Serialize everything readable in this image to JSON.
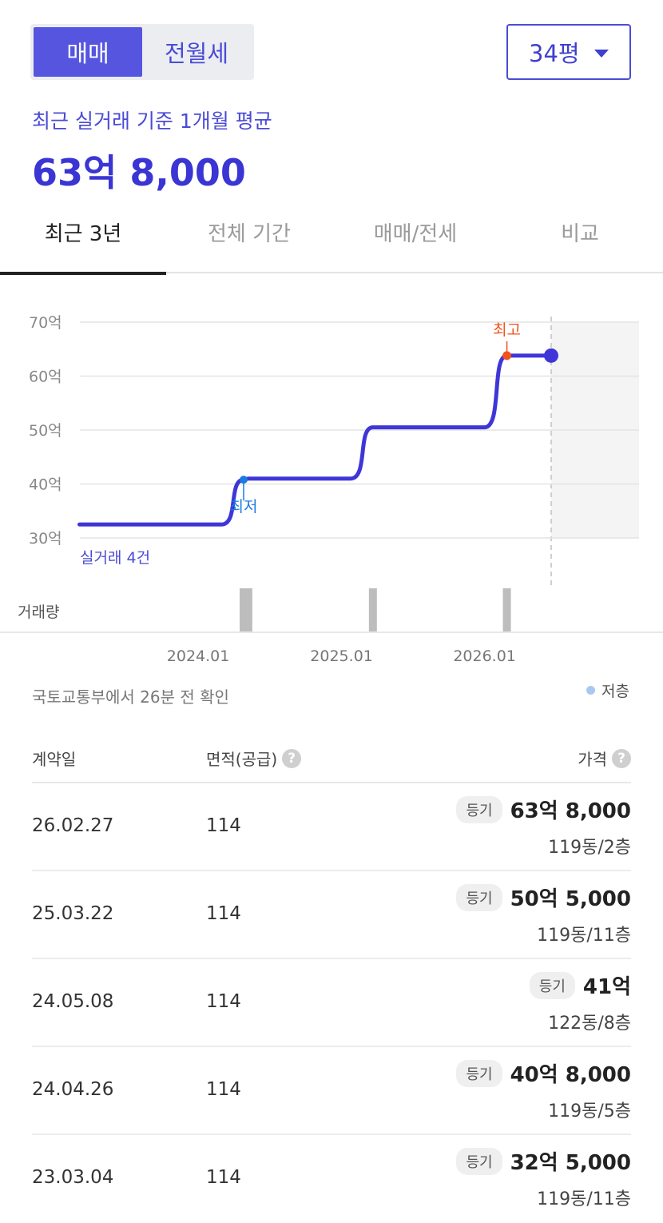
{
  "segment": {
    "options": [
      "매매",
      "전월세"
    ],
    "selected": 0
  },
  "size_select": {
    "value": "34평"
  },
  "summary": {
    "label": "최근 실거래 기준 1개월 평균",
    "price": "63억 8,000"
  },
  "tabs": [
    {
      "label": "최근 3년",
      "active": true
    },
    {
      "label": "전체 기간",
      "active": false
    },
    {
      "label": "매매/전세",
      "active": false
    },
    {
      "label": "비교",
      "active": false
    }
  ],
  "chart_data": {
    "type": "line",
    "y_tick_labels": [
      "70억",
      "60억",
      "50억",
      "40억",
      "30억"
    ],
    "y_ticks": [
      70,
      60,
      50,
      40,
      30
    ],
    "ylim": [
      30,
      70
    ],
    "x_tick_labels": [
      "2024.01",
      "2025.01",
      "2026.01"
    ],
    "x_ticks": [
      "2024-01-01",
      "2025-01-01",
      "2026-01-01"
    ],
    "xlim": [
      "2023-03-01",
      "2026-06-20"
    ],
    "series": [
      {
        "x": [
          "2023-03-04",
          "2024-04-26",
          "2024-05-08",
          "2025-03-22",
          "2026-02-27",
          "2026-06-20"
        ],
        "y": [
          32.5,
          40.8,
          41,
          50.5,
          63.8,
          63.8
        ]
      }
    ],
    "min_marker": {
      "label": "최저",
      "x": "2024-04-26",
      "y": 40.8
    },
    "max_marker": {
      "label": "최고",
      "x": "2026-02-27",
      "y": 63.8
    },
    "deal_count_label": "실거래 4건",
    "volume_label": "거래량",
    "volume": [
      {
        "x": "2024-04-26",
        "count": 1
      },
      {
        "x": "2024-05-08",
        "count": 1
      },
      {
        "x": "2025-03-22",
        "count": 1
      },
      {
        "x": "2026-02-27",
        "count": 1
      }
    ],
    "colors": {
      "line": "#3f36d8",
      "min": "#1a7be0",
      "max": "#f2521f",
      "volume": "#bdbdbd"
    }
  },
  "source_note": "국토교통부에서 26분 전 확인",
  "legend": {
    "label": "저층",
    "color": "#a8c8f0"
  },
  "table": {
    "headers": {
      "date": "계약일",
      "area": "면적(공급)",
      "price": "가격"
    },
    "rows": [
      {
        "date": "26.02.27",
        "area": "114",
        "badge": "등기",
        "price": "63억 8,000",
        "floor": "119동/2층"
      },
      {
        "date": "25.03.22",
        "area": "114",
        "badge": "등기",
        "price": "50억 5,000",
        "floor": "119동/11층"
      },
      {
        "date": "24.05.08",
        "area": "114",
        "badge": "등기",
        "price": "41억",
        "floor": "122동/8층"
      },
      {
        "date": "24.04.26",
        "area": "114",
        "badge": "등기",
        "price": "40억 8,000",
        "floor": "119동/5층"
      },
      {
        "date": "23.03.04",
        "area": "114",
        "badge": "등기",
        "price": "32억 5,000",
        "floor": "119동/11층"
      }
    ]
  }
}
